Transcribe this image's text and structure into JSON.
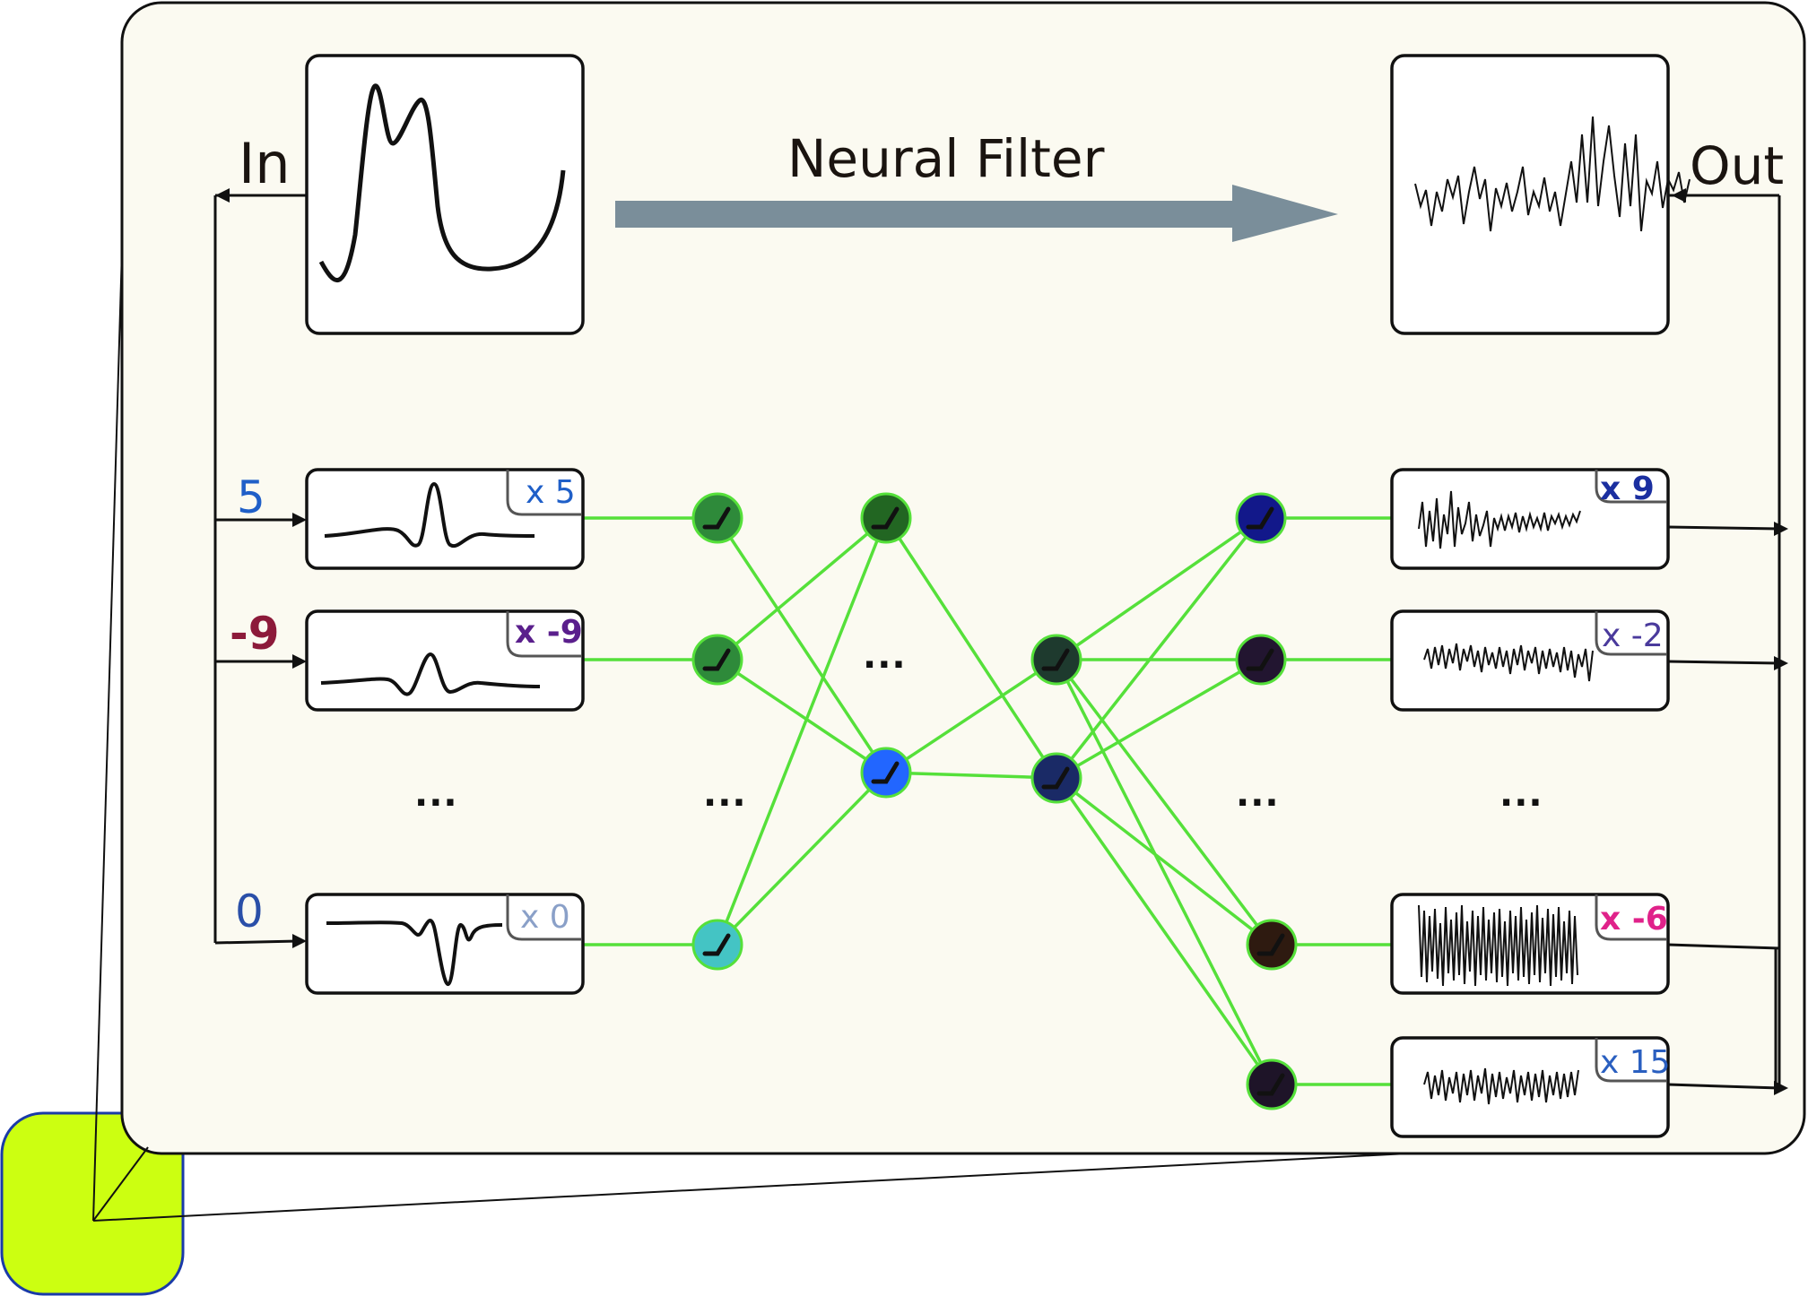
{
  "diagram": {
    "title": "Neural Filter",
    "input_label": "In",
    "output_label": "Out",
    "input_weights": [
      {
        "value": "5",
        "badge": "x 5",
        "color": "#1f5fc8",
        "badge_color": "#1f5fc8"
      },
      {
        "value": "-9",
        "badge": "x -9",
        "color": "#8c1a3a",
        "badge_color": "#5a1f8c"
      },
      {
        "value": "0",
        "badge": "x 0",
        "color": "#2a4fa8",
        "badge_color": "#8aa0c8"
      }
    ],
    "output_weights": [
      {
        "badge": "x 9",
        "color": "#1b2fa0"
      },
      {
        "badge": "x -2",
        "color": "#4a3a9c"
      },
      {
        "badge": "x -6",
        "color": "#e0228a"
      },
      {
        "badge": "x 15",
        "color": "#2a5fc0"
      }
    ],
    "ellipsis": "...",
    "colors": {
      "panel_bg": "#fbfaf1",
      "callout": "#ccff11",
      "callout_border": "#1a3aa8",
      "edges": "#55e03a",
      "arrow": "#7a8e9a"
    }
  }
}
